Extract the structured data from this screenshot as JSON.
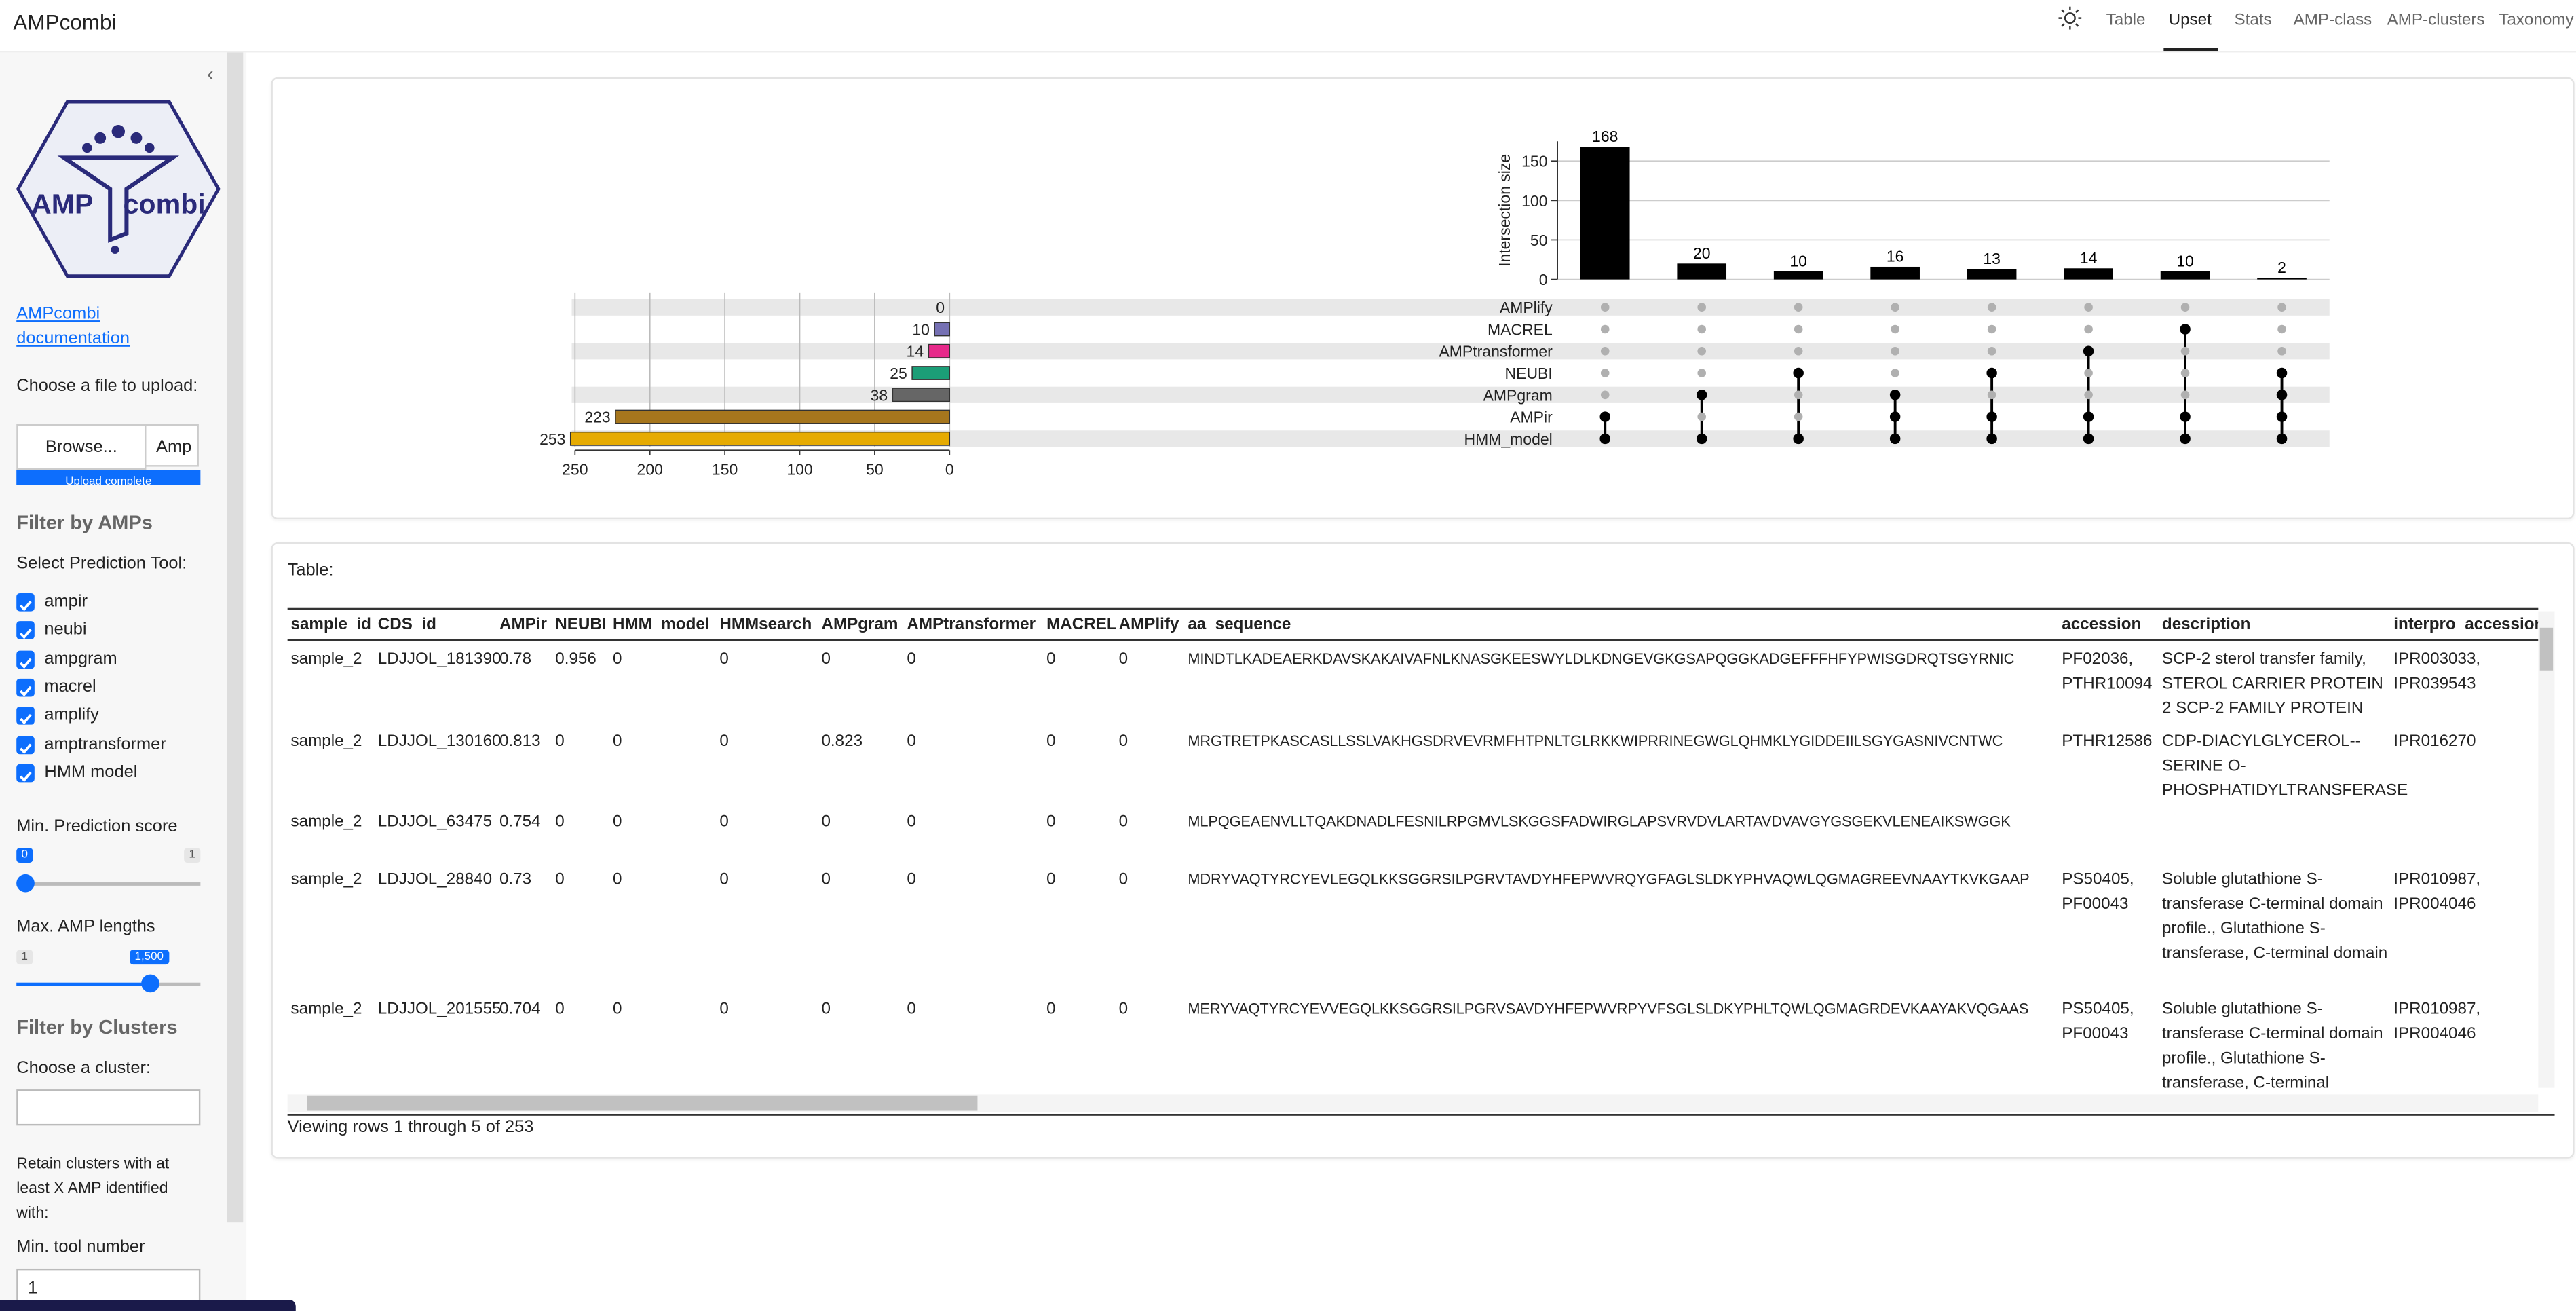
{
  "header": {
    "title": "AMPcombi",
    "nav": [
      "Table",
      "Upset",
      "Stats",
      "AMP-class",
      "AMP-clusters",
      "Taxonomy"
    ],
    "active_index": 1
  },
  "sidebar": {
    "logo": [
      "AMP",
      "combi"
    ],
    "doc_link": "AMPcombi documentation",
    "upload_label": "Choose a file to upload:",
    "browse": "Browse...",
    "file_name": "Amp",
    "upload_status": "Upload complete",
    "amp_heading": "Filter by AMPs",
    "tool_label": "Select Prediction Tool:",
    "tools": [
      "ampir",
      "neubi",
      "ampgram",
      "macrel",
      "amplify",
      "amptransformer",
      "HMM model"
    ],
    "score_label": "Min. Prediction score",
    "score_slider": [
      "0",
      "1"
    ],
    "length_label": "Max. AMP lengths",
    "length_slider": [
      "1",
      "1,500"
    ],
    "cluster_heading": "Filter by Clusters",
    "cluster_label": "Choose a cluster:",
    "retain_text": "Retain clusters with at least X AMP identified with:",
    "min_tool_label": "Min. tool number",
    "min_tool_value": "1"
  },
  "upset": {
    "type": "upset",
    "y_label": "Intersection size",
    "intersection_sizes": [
      168,
      20,
      10,
      16,
      13,
      14,
      10,
      2
    ],
    "ylim": [
      0,
      175
    ],
    "yticks": [
      0,
      50,
      100,
      150
    ],
    "sets": [
      "AMPlify",
      "MACREL",
      "AMPtransformer",
      "NEUBI",
      "AMPgram",
      "AMPir",
      "HMM_model"
    ],
    "set_sizes": [
      0,
      10,
      14,
      25,
      38,
      223,
      253
    ],
    "set_colors": [
      "#e6ab02",
      "#7570b3",
      "#e7298a",
      "#1b9e77",
      "#666666",
      "#a6761d",
      "#e6ab02"
    ],
    "xlim": [
      250,
      0
    ],
    "xticks": [
      250,
      200,
      150,
      100,
      50,
      0
    ],
    "membership": [
      [
        false,
        false,
        false,
        false,
        false,
        true,
        true
      ],
      [
        false,
        false,
        false,
        false,
        true,
        false,
        true
      ],
      [
        false,
        false,
        false,
        true,
        false,
        false,
        true
      ],
      [
        false,
        false,
        false,
        false,
        true,
        true,
        true
      ],
      [
        false,
        false,
        false,
        true,
        false,
        true,
        true
      ],
      [
        false,
        false,
        true,
        false,
        false,
        true,
        true
      ],
      [
        false,
        true,
        false,
        false,
        false,
        true,
        true
      ],
      [
        false,
        false,
        false,
        true,
        true,
        true,
        true
      ]
    ]
  },
  "table": {
    "label": "Table:",
    "columns": [
      "sample_id",
      "CDS_id",
      "AMPir",
      "NEUBI",
      "HMM_model",
      "HMMsearch",
      "AMPgram",
      "AMPtransformer",
      "MACREL",
      "AMPlify",
      "aa_sequence",
      "accession",
      "description",
      "interpro_accession"
    ],
    "rows": [
      [
        "sample_2",
        "LDJJOL_181390",
        0.78,
        0.956,
        0,
        0,
        0,
        0,
        0,
        0,
        "MINDTLKADEAERKDAVSKAKAIVAFNLKNASGKEESWYLDLKDNGEVGKGSAPQGGKADGEFFFHFYPWISGDRQTSGYRNIC",
        "PF02036, PTHR10094",
        "SCP-2 sterol transfer family, STEROL CARRIER PROTEIN 2 SCP-2 FAMILY PROTEIN",
        "IPR003033, IPR039543"
      ],
      [
        "sample_2",
        "LDJJOL_130160",
        0.813,
        0,
        0,
        0,
        0.823,
        0,
        0,
        0,
        "MRGTRETPKASCASLLSSLVAKHGSDRVEVRMFHTPNLTGLRKKWIPRRINEGWGLQHMKLYGIDDEIILSGYGASNIVCNTWC",
        "PTHR12586",
        "CDP-DIACYLGLYCEROL--SERINE O-PHOSPHATIDYLTRANSFERASE",
        "IPR016270"
      ],
      [
        "sample_2",
        "LDJJOL_63475",
        0.754,
        0,
        0,
        0,
        0,
        0,
        0,
        0,
        "MLPQGEAENVLLTQAKDNADLFESNILRPGMVLSKGGSFADWIRGLAPSVRVDVLARTAVDVAVGYGSGEKVLENEAIKSWGGK",
        null,
        null,
        null
      ],
      [
        "sample_2",
        "LDJJOL_28840",
        0.73,
        0,
        0,
        0,
        0,
        0,
        0,
        0,
        "MDRYVAQTYRCYEVLEGQLKKSGGRSILPGRVTAVDYHFEPWVRQYGFAGLSLDKYPHVAQWLQGMAGREEVNAAYTKVKGAAP",
        "PS50405, PF00043",
        "Soluble glutathione S-transferase C-terminal domain profile., Glutathione S-transferase, C-terminal domain",
        "IPR010987, IPR004046"
      ],
      [
        "sample_2",
        "LDJJOL_201555",
        0.704,
        0,
        0,
        0,
        0,
        0,
        0,
        0,
        "MERYVAQTYRCYEVVEGQLKKSGGRSILPGRVSAVDYHFEPWVRPYVFSGLSLDKYPHLTQWLQGMAGRDEVKAAYAKVQGAAS",
        "PS50405, PF00043",
        "Soluble glutathione S-transferase C-terminal domain profile., Glutathione S-transferase, C-terminal",
        "IPR010987, IPR004046"
      ]
    ],
    "footer": "Viewing rows 1 through 5 of 253"
  }
}
